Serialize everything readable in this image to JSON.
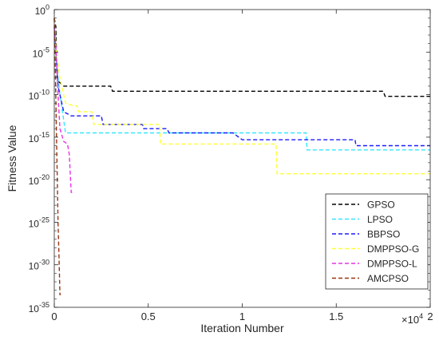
{
  "chart_data": {
    "type": "line",
    "title": "",
    "xlabel": "Iteration Number",
    "ylabel": "Fitness Value",
    "x_multiplier_label": "×10",
    "x_multiplier_exp": "4",
    "xlim": [
      0,
      20000
    ],
    "ylim_exp": [
      -35,
      0
    ],
    "y_scale": "log",
    "grid": false,
    "legend_position": "lower-right",
    "x_ticks": [
      {
        "value": 0,
        "label": "0"
      },
      {
        "value": 5000,
        "label": "0.5"
      },
      {
        "value": 10000,
        "label": "1"
      },
      {
        "value": 15000,
        "label": "1.5"
      },
      {
        "value": 20000,
        "label": "2"
      }
    ],
    "y_ticks": [
      {
        "exp": 0,
        "base": "10",
        "sup": "0"
      },
      {
        "exp": -5,
        "base": "10",
        "sup": "-5"
      },
      {
        "exp": -10,
        "base": "10",
        "sup": "-10"
      },
      {
        "exp": -15,
        "base": "10",
        "sup": "-15"
      },
      {
        "exp": -20,
        "base": "10",
        "sup": "-20"
      },
      {
        "exp": -25,
        "base": "10",
        "sup": "-25"
      },
      {
        "exp": -30,
        "base": "10",
        "sup": "-30"
      },
      {
        "exp": -35,
        "base": "10",
        "sup": "-35"
      }
    ],
    "series": [
      {
        "name": "GPSO",
        "color": "#000000",
        "y_exp": [
          [
            0,
            -1
          ],
          [
            80,
            -2
          ],
          [
            150,
            -8
          ],
          [
            250,
            -8.5
          ],
          [
            500,
            -9
          ],
          [
            3000,
            -9
          ],
          [
            3100,
            -9.6
          ],
          [
            7500,
            -9.6
          ],
          [
            17500,
            -9.6
          ],
          [
            17600,
            -10.2
          ],
          [
            20000,
            -10.2
          ]
        ]
      },
      {
        "name": "LPSO",
        "color": "#33e6ff",
        "y_exp": [
          [
            0,
            -2
          ],
          [
            100,
            -6
          ],
          [
            300,
            -10
          ],
          [
            500,
            -13
          ],
          [
            600,
            -14.5
          ],
          [
            1000,
            -14.5
          ],
          [
            13400,
            -14.5
          ],
          [
            13450,
            -16.5
          ],
          [
            20000,
            -16.5
          ]
        ]
      },
      {
        "name": "BBPSO",
        "color": "#1a1aff",
        "y_exp": [
          [
            0,
            -1
          ],
          [
            100,
            -5
          ],
          [
            200,
            -9
          ],
          [
            500,
            -12
          ],
          [
            900,
            -12.5
          ],
          [
            2500,
            -12.5
          ],
          [
            2600,
            -13.5
          ],
          [
            4700,
            -13.5
          ],
          [
            4750,
            -14
          ],
          [
            6000,
            -14
          ],
          [
            6100,
            -14.5
          ],
          [
            9500,
            -14.5
          ],
          [
            10000,
            -15.3
          ],
          [
            16000,
            -15.3
          ],
          [
            16050,
            -16
          ],
          [
            20000,
            -16
          ]
        ]
      },
      {
        "name": "DMPPSO-G",
        "color": "#ffff33",
        "y_exp": [
          [
            0,
            -1
          ],
          [
            100,
            -5
          ],
          [
            300,
            -8
          ],
          [
            600,
            -11
          ],
          [
            1000,
            -11.3
          ],
          [
            1200,
            -11.3
          ],
          [
            1300,
            -12
          ],
          [
            2000,
            -12
          ],
          [
            2100,
            -13.5
          ],
          [
            5600,
            -13.5
          ],
          [
            5650,
            -15.8
          ],
          [
            11800,
            -15.8
          ],
          [
            11850,
            -19.3
          ],
          [
            20000,
            -19.3
          ]
        ]
      },
      {
        "name": "DMPPSO-L",
        "color": "#e633e6",
        "y_exp": [
          [
            0,
            -2
          ],
          [
            100,
            -5
          ],
          [
            200,
            -10
          ],
          [
            300,
            -14
          ],
          [
            500,
            -15.5
          ],
          [
            700,
            -15.8
          ],
          [
            800,
            -17
          ],
          [
            900,
            -21.5
          ],
          [
            950,
            -21.5
          ]
        ]
      },
      {
        "name": "AMCPSO",
        "color": "#993311",
        "y_exp": [
          [
            0,
            -1
          ],
          [
            40,
            -5
          ],
          [
            80,
            -10
          ],
          [
            120,
            -15
          ],
          [
            160,
            -20
          ],
          [
            200,
            -25
          ],
          [
            250,
            -29
          ],
          [
            300,
            -33.5
          ],
          [
            350,
            -33.5
          ]
        ]
      }
    ]
  }
}
